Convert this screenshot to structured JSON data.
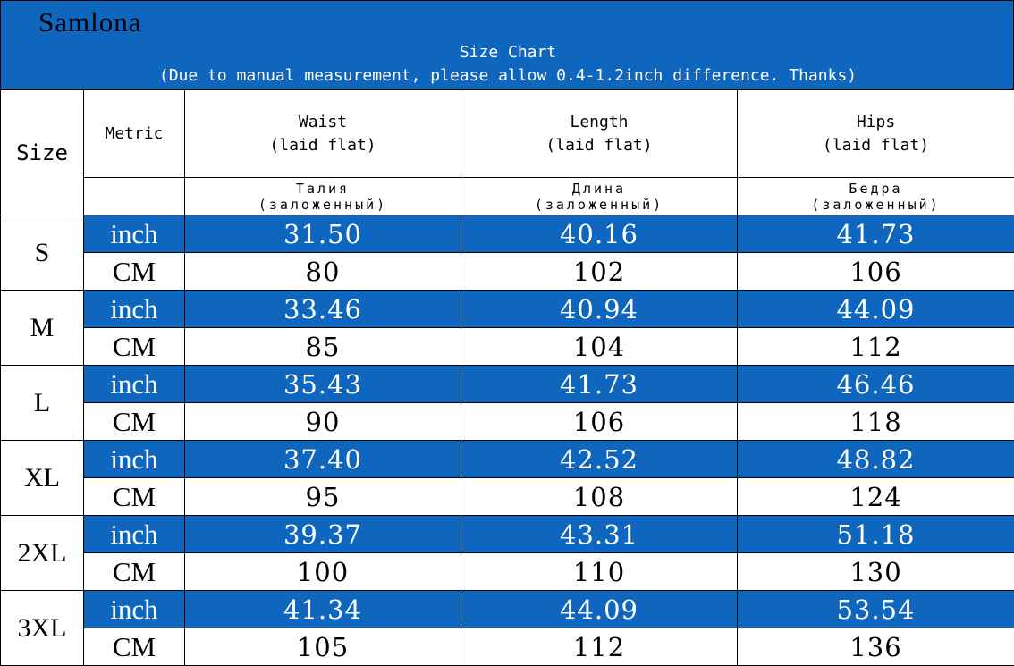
{
  "brand": "Samlona",
  "title": "Size Chart",
  "note": "(Due to manual measurement, please allow 0.4-1.2inch difference. Thanks)",
  "colors": {
    "header_blue": "#0f66bf",
    "border": "#000000",
    "cell_white": "#ffffff"
  },
  "columns": {
    "size": "Size",
    "metric": "Metric",
    "waist": "Waist",
    "waist_sub": "(laid flat)",
    "waist_ru": "Талия",
    "waist_ru_sub": "(заложенный)",
    "length": "Length",
    "length_sub": "(laid flat)",
    "length_ru": "Длина",
    "length_ru_sub": "(заложенный)",
    "hips": "Hips",
    "hips_sub": "(laid flat)",
    "hips_ru": "Бедра",
    "hips_ru_sub": "(заложенный)"
  },
  "sizes": [
    {
      "size": "S",
      "inch_label": "inch",
      "inch": [
        "31.50",
        "40.16",
        "41.73"
      ],
      "cm_label": "CM",
      "cm": [
        "80",
        "102",
        "106"
      ]
    },
    {
      "size": "M",
      "inch_label": "inch",
      "inch": [
        "33.46",
        "40.94",
        "44.09"
      ],
      "cm_label": "CM",
      "cm": [
        "85",
        "104",
        "112"
      ]
    },
    {
      "size": "L",
      "inch_label": "inch",
      "inch": [
        "35.43",
        "41.73",
        "46.46"
      ],
      "cm_label": "CM",
      "cm": [
        "90",
        "106",
        "118"
      ]
    },
    {
      "size": "XL",
      "inch_label": "inch",
      "inch": [
        "37.40",
        "42.52",
        "48.82"
      ],
      "cm_label": "CM",
      "cm": [
        "95",
        "108",
        "124"
      ]
    },
    {
      "size": "2XL",
      "inch_label": "inch",
      "inch": [
        "39.37",
        "43.31",
        "51.18"
      ],
      "cm_label": "CM",
      "cm": [
        "100",
        "110",
        "130"
      ]
    },
    {
      "size": "3XL",
      "inch_label": "inch",
      "inch": [
        "41.34",
        "44.09",
        "53.54"
      ],
      "cm_label": "CM",
      "cm": [
        "105",
        "112",
        "136"
      ]
    }
  ]
}
